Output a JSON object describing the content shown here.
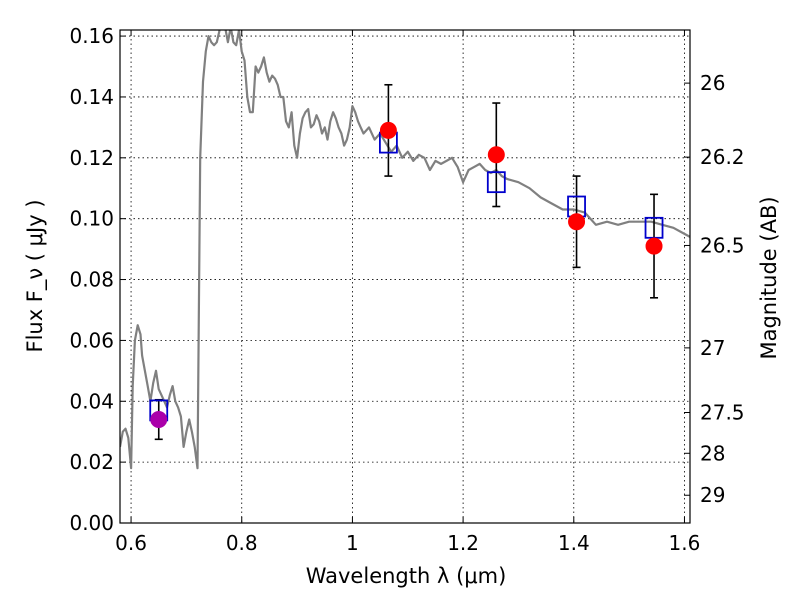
{
  "chart_data": {
    "type": "scatter",
    "xlabel": "Wavelength  λ (μm)",
    "ylabel": "Flux  F_ν  ( μJy )",
    "y2label": "Magnitude (AB)",
    "xlim": [
      0.58,
      1.61
    ],
    "ylim": [
      0.0,
      0.162
    ],
    "x_ticks": [
      "0.6",
      "0.8",
      "1",
      "1.2",
      "1.4",
      "1.6"
    ],
    "y_ticks": [
      "0.00",
      "0.02",
      "0.04",
      "0.06",
      "0.08",
      "0.10",
      "0.12",
      "0.14",
      "0.16"
    ],
    "y2_ticks": [
      "26",
      "26.2",
      "26.5",
      "27",
      "27.5",
      "28",
      "29"
    ],
    "grid": true,
    "colors": {
      "model": "#808080",
      "observed": "#ff0000",
      "upper_limit": "#aa00aa",
      "synthetic": "#0000cc",
      "errorbar": "#000000"
    },
    "series": [
      {
        "kind": "line",
        "x": [
          0.58,
          0.585,
          0.59,
          0.595,
          0.6,
          0.603,
          0.607,
          0.612,
          0.617,
          0.62,
          0.625,
          0.63,
          0.635,
          0.64,
          0.645,
          0.65,
          0.655,
          0.66,
          0.665,
          0.67,
          0.675,
          0.68,
          0.685,
          0.69,
          0.695,
          0.7,
          0.705,
          0.71,
          0.715,
          0.72,
          0.725,
          0.73,
          0.735,
          0.74,
          0.745,
          0.75,
          0.755,
          0.76,
          0.765,
          0.77,
          0.775,
          0.78,
          0.785,
          0.79,
          0.795,
          0.8,
          0.805,
          0.81,
          0.815,
          0.82,
          0.825,
          0.83,
          0.835,
          0.84,
          0.845,
          0.85,
          0.855,
          0.86,
          0.865,
          0.87,
          0.875,
          0.88,
          0.885,
          0.89,
          0.895,
          0.9,
          0.905,
          0.91,
          0.915,
          0.92,
          0.925,
          0.93,
          0.935,
          0.94,
          0.945,
          0.95,
          0.955,
          0.96,
          0.965,
          0.97,
          0.975,
          0.98,
          0.985,
          0.99,
          0.995,
          1.0,
          1.005,
          1.01,
          1.015,
          1.02,
          1.03,
          1.04,
          1.05,
          1.06,
          1.07,
          1.08,
          1.09,
          1.1,
          1.11,
          1.12,
          1.13,
          1.14,
          1.15,
          1.16,
          1.17,
          1.18,
          1.19,
          1.2,
          1.21,
          1.22,
          1.23,
          1.24,
          1.25,
          1.26,
          1.27,
          1.28,
          1.3,
          1.32,
          1.34,
          1.36,
          1.38,
          1.4,
          1.42,
          1.44,
          1.46,
          1.48,
          1.5,
          1.52,
          1.54,
          1.56,
          1.58,
          1.6,
          1.61
        ],
        "y": [
          0.025,
          0.03,
          0.031,
          0.028,
          0.018,
          0.045,
          0.06,
          0.065,
          0.062,
          0.055,
          0.05,
          0.045,
          0.04,
          0.046,
          0.05,
          0.044,
          0.042,
          0.04,
          0.038,
          0.042,
          0.045,
          0.04,
          0.038,
          0.035,
          0.025,
          0.03,
          0.034,
          0.03,
          0.025,
          0.018,
          0.12,
          0.145,
          0.155,
          0.16,
          0.158,
          0.157,
          0.158,
          0.162,
          0.165,
          0.163,
          0.158,
          0.163,
          0.158,
          0.157,
          0.162,
          0.155,
          0.152,
          0.14,
          0.135,
          0.135,
          0.15,
          0.148,
          0.15,
          0.153,
          0.148,
          0.145,
          0.147,
          0.146,
          0.144,
          0.14,
          0.14,
          0.132,
          0.13,
          0.135,
          0.124,
          0.12,
          0.128,
          0.133,
          0.135,
          0.136,
          0.13,
          0.131,
          0.134,
          0.132,
          0.128,
          0.13,
          0.126,
          0.132,
          0.135,
          0.133,
          0.13,
          0.128,
          0.124,
          0.126,
          0.13,
          0.137,
          0.135,
          0.132,
          0.13,
          0.128,
          0.13,
          0.126,
          0.128,
          0.125,
          0.122,
          0.124,
          0.12,
          0.122,
          0.119,
          0.121,
          0.12,
          0.116,
          0.119,
          0.118,
          0.119,
          0.12,
          0.117,
          0.112,
          0.116,
          0.117,
          0.118,
          0.116,
          0.115,
          0.116,
          0.114,
          0.113,
          0.112,
          0.11,
          0.107,
          0.105,
          0.103,
          0.103,
          0.102,
          0.098,
          0.099,
          0.098,
          0.099,
          0.099,
          0.099,
          0.098,
          0.097,
          0.095,
          0.094
        ]
      },
      {
        "kind": "points",
        "marker": "circle",
        "color": "#ff0000",
        "x": [
          1.065,
          1.26,
          1.405,
          1.545
        ],
        "y": [
          0.129,
          0.121,
          0.099,
          0.091
        ],
        "yerr": [
          0.015,
          0.017,
          0.015,
          0.017
        ]
      },
      {
        "kind": "points",
        "marker": "circle",
        "color": "#aa00aa",
        "x": [
          0.65
        ],
        "y": [
          0.034
        ],
        "yerr": [
          0.0065
        ]
      },
      {
        "kind": "points",
        "marker": "open-square",
        "color": "#0000cc",
        "x": [
          0.65,
          1.065,
          1.26,
          1.405,
          1.545
        ],
        "y": [
          0.037,
          0.125,
          0.112,
          0.104,
          0.097
        ]
      }
    ]
  }
}
